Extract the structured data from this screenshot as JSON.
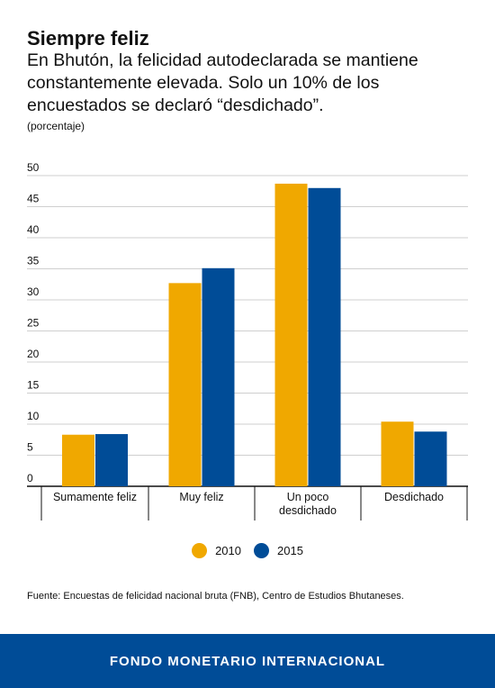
{
  "title": "Siempre feliz",
  "subtitle": "En Bhutón, la felicidad autodeclarada se mantiene constantemente elevada. Solo un 10% de los encuestados se declaró “desdichado”.",
  "unit_label": "(porcentaje)",
  "source": "Fuente: Encuestas de felicidad nacional bruta (FNB), Centro de Estudios Bhutaneses.",
  "footer": "FONDO MONETARIO INTERNACIONAL",
  "colors": {
    "s2010": "#f0a800",
    "s2015": "#004c97",
    "grid": "#cfcfcf",
    "footer_bg": "#004c97"
  },
  "chart_data": {
    "type": "bar",
    "categories": [
      "Sumamente feliz",
      "Muy feliz",
      "Un poco desdichado",
      "Desdichado"
    ],
    "series": [
      {
        "name": "2010",
        "values": [
          8.3,
          32.7,
          48.7,
          10.4
        ]
      },
      {
        "name": "2015",
        "values": [
          8.4,
          35.1,
          48.0,
          8.8
        ]
      }
    ],
    "ylim": [
      0,
      50
    ],
    "yticks": [
      0,
      5,
      10,
      15,
      20,
      25,
      30,
      35,
      40,
      45,
      50
    ],
    "grid": true,
    "legend": "bottom-center"
  }
}
